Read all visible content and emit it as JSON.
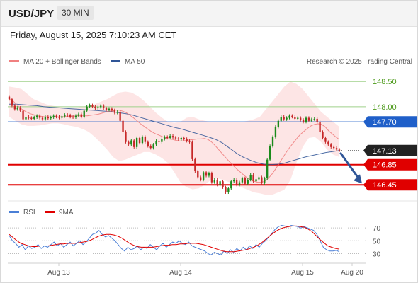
{
  "header": {
    "symbol": "USD/JPY",
    "timeframe": "30 MIN"
  },
  "datetime": "Friday, August 15, 2025 7:10:23 AM CET",
  "legend": {
    "ma20_bb": "MA 20 + Bollinger Bands",
    "ma50": "MA 50",
    "credit": "Research © 2025 Trading Central"
  },
  "rsi_legend": {
    "rsi": "RSI",
    "ma9": "9MA"
  },
  "colors": {
    "ma20": "#f08080",
    "ma50": "#2f5597",
    "bands": "#fde0e0",
    "rsi": "#4a7fd6",
    "ma9": "#e00000",
    "up": "#1b8a1b",
    "down": "#c62828",
    "support": "#e00000",
    "pivot": "#1f5fc9",
    "resistance_lines": "#9fd08a",
    "resistance_text": "#4c9a1a",
    "last": "#222222",
    "arrow": "#2f5597"
  },
  "chart_data": [
    {
      "type": "candlestick",
      "x_labels": [
        "Aug 13",
        "Aug 14",
        "Aug 15",
        "Aug 20"
      ],
      "ylim": [
        146.2,
        148.7
      ],
      "levels": [
        {
          "value": 148.5,
          "label": "148.50",
          "kind": "resistance"
        },
        {
          "value": 148.0,
          "label": "148.00",
          "kind": "resistance"
        },
        {
          "value": 147.7,
          "label": "147.70",
          "kind": "pivot"
        },
        {
          "value": 147.13,
          "label": "147.13",
          "kind": "last"
        },
        {
          "value": 146.85,
          "label": "146.85",
          "kind": "support"
        },
        {
          "value": 146.45,
          "label": "146.45",
          "kind": "support"
        }
      ],
      "close": [
        148.15,
        148.02,
        147.95,
        147.98,
        147.92,
        147.75,
        147.8,
        147.78,
        147.76,
        147.79,
        147.82,
        147.78,
        147.75,
        147.8,
        147.77,
        147.79,
        147.82,
        147.8,
        147.78,
        147.81,
        147.84,
        147.83,
        147.8,
        147.79,
        147.82,
        147.85,
        147.8,
        147.92,
        148.0,
        148.03,
        148.0,
        147.97,
        147.99,
        148.02,
        147.97,
        147.94,
        147.96,
        147.93,
        147.88,
        147.9,
        147.72,
        147.5,
        147.3,
        147.25,
        147.33,
        147.2,
        147.38,
        147.28,
        147.4,
        147.3,
        147.22,
        147.18,
        147.25,
        147.32,
        147.3,
        147.36,
        147.4,
        147.38,
        147.42,
        147.39,
        147.37,
        147.35,
        147.38,
        147.36,
        147.32,
        147.3,
        146.96,
        146.72,
        146.6,
        146.55,
        146.7,
        146.63,
        146.68,
        146.5,
        146.55,
        146.45,
        146.52,
        146.4,
        146.3,
        146.38,
        146.52,
        146.55,
        146.45,
        146.5,
        146.58,
        146.47,
        146.55,
        146.65,
        146.52,
        146.56,
        146.6,
        146.48,
        146.58,
        146.95,
        147.22,
        147.4,
        147.6,
        147.72,
        147.8,
        147.75,
        147.78,
        147.82,
        147.8,
        147.76,
        147.78,
        147.74,
        147.7,
        147.78,
        147.72,
        147.75,
        147.76,
        147.7,
        147.5,
        147.38,
        147.3,
        147.25,
        147.2,
        147.18,
        147.15,
        147.13
      ],
      "ma20": [
        148.15,
        148.12,
        148.05,
        147.98,
        147.93,
        147.89,
        147.86,
        147.84,
        147.82,
        147.81,
        147.8,
        147.8,
        147.79,
        147.8,
        147.8,
        147.8,
        147.81,
        147.81,
        147.81,
        147.82,
        147.82,
        147.82,
        147.82,
        147.83,
        147.84,
        147.85,
        147.87,
        147.89,
        147.91,
        147.92,
        147.93,
        147.93,
        147.91,
        147.88,
        147.83,
        147.78,
        147.72,
        147.66,
        147.61,
        147.56,
        147.51,
        147.47,
        147.44,
        147.41,
        147.38,
        147.36,
        147.35,
        147.33,
        147.32,
        147.32,
        147.33,
        147.34,
        147.35,
        147.36,
        147.36,
        147.37,
        147.35,
        147.3,
        147.23,
        147.15,
        147.07,
        146.99,
        146.91,
        146.84,
        146.77,
        146.71,
        146.65,
        146.59,
        146.55,
        146.52,
        146.5,
        146.5,
        146.52,
        146.58,
        146.66,
        146.76,
        146.87,
        146.98,
        147.09,
        147.19,
        147.28,
        147.37,
        147.45,
        147.51,
        147.57,
        147.62,
        147.65,
        147.66,
        147.65,
        147.6,
        147.52,
        147.46,
        147.4,
        147.35
      ],
      "ma50": [
        148.05,
        148.05,
        148.04,
        148.03,
        148.02,
        148.0,
        147.99,
        147.98,
        147.97,
        147.96,
        147.95,
        147.94,
        147.93,
        147.92,
        147.91,
        147.9,
        147.88,
        147.86,
        147.83,
        147.79,
        147.75,
        147.71,
        147.67,
        147.63,
        147.59,
        147.56,
        147.52,
        147.48,
        147.44,
        147.4,
        147.35,
        147.28,
        147.18,
        147.08,
        147.0,
        146.94,
        146.89,
        146.86,
        146.85,
        146.86,
        146.88,
        146.92,
        146.96,
        147.0,
        147.03,
        147.06,
        147.09,
        147.11,
        147.13
      ],
      "bb_upper": [
        148.4,
        148.38,
        148.35,
        148.25,
        148.15,
        148.1,
        148.05,
        148.02,
        148.0,
        147.98,
        147.98,
        147.98,
        148.0,
        148.02,
        148.05,
        148.1,
        148.15,
        148.22,
        148.28,
        148.3,
        148.28,
        148.22,
        148.12,
        148.0,
        147.88,
        147.78,
        147.7,
        147.68,
        147.7,
        147.78,
        147.8,
        147.75,
        147.72,
        147.7,
        147.7,
        147.7,
        147.7,
        147.7,
        147.7,
        147.72,
        147.75,
        147.8,
        147.95,
        148.1,
        148.25,
        148.4,
        148.5,
        148.45,
        148.35,
        148.2,
        148.05,
        147.9,
        147.8,
        147.7,
        147.6
      ],
      "bb_lower": [
        147.8,
        147.72,
        147.65,
        147.62,
        147.62,
        147.63,
        147.65,
        147.67,
        147.67,
        147.65,
        147.62,
        147.6,
        147.56,
        147.5,
        147.4,
        147.28,
        147.15,
        147.0,
        146.92,
        146.95,
        147.0,
        147.05,
        147.1,
        147.1,
        147.05,
        146.98,
        146.88,
        146.7,
        146.5,
        146.4,
        146.36,
        146.38,
        146.45,
        146.55,
        146.58,
        146.55,
        146.5,
        146.45,
        146.4,
        146.35,
        146.3,
        146.28,
        146.25,
        146.25,
        146.3,
        146.35,
        146.55,
        146.9,
        147.2,
        147.38,
        147.4,
        147.3,
        147.15,
        147.05,
        147.0
      ],
      "forecast": {
        "from": 147.13,
        "to": 146.45,
        "direction": "down"
      }
    },
    {
      "type": "line",
      "name": "RSI",
      "ylim": [
        25,
        80
      ],
      "ticks": [
        70,
        50,
        30
      ],
      "rsi": [
        58,
        50,
        46,
        40,
        44,
        36,
        42,
        38,
        40,
        44,
        38,
        42,
        40,
        44,
        48,
        42,
        46,
        40,
        44,
        48,
        42,
        46,
        50,
        44,
        48,
        54,
        60,
        62,
        66,
        60,
        56,
        58,
        54,
        50,
        44,
        38,
        34,
        40,
        36,
        38,
        42,
        36,
        40,
        38,
        44,
        40,
        36,
        42,
        46,
        40,
        44,
        48,
        46,
        50,
        46,
        44,
        48,
        42,
        40,
        38,
        36,
        34,
        30,
        28,
        32,
        30,
        28,
        34,
        30,
        36,
        32,
        38,
        34,
        40,
        36,
        42,
        38,
        44,
        40,
        46,
        50,
        56,
        62,
        68,
        72,
        74,
        73,
        72,
        74,
        73,
        72,
        70,
        72,
        70,
        68,
        66,
        60,
        50,
        40,
        36,
        34,
        34,
        35,
        33
      ],
      "ma9": [
        60,
        55,
        50,
        46,
        44,
        42,
        41,
        41,
        42,
        42,
        42,
        43,
        44,
        45,
        45,
        46,
        46,
        46,
        47,
        48,
        49,
        51,
        54,
        57,
        59,
        60,
        60,
        59,
        57,
        54,
        50,
        46,
        43,
        41,
        40,
        40,
        40,
        40,
        41,
        42,
        43,
        43,
        44,
        44,
        45,
        45,
        46,
        46,
        46,
        45,
        44,
        42,
        40,
        38,
        36,
        34,
        33,
        33,
        33,
        34,
        35,
        36,
        38,
        40,
        43,
        47,
        52,
        57,
        62,
        66,
        69,
        71,
        72,
        73,
        73,
        72,
        71,
        68,
        64,
        58,
        52,
        47,
        42,
        40,
        38,
        37
      ]
    }
  ]
}
